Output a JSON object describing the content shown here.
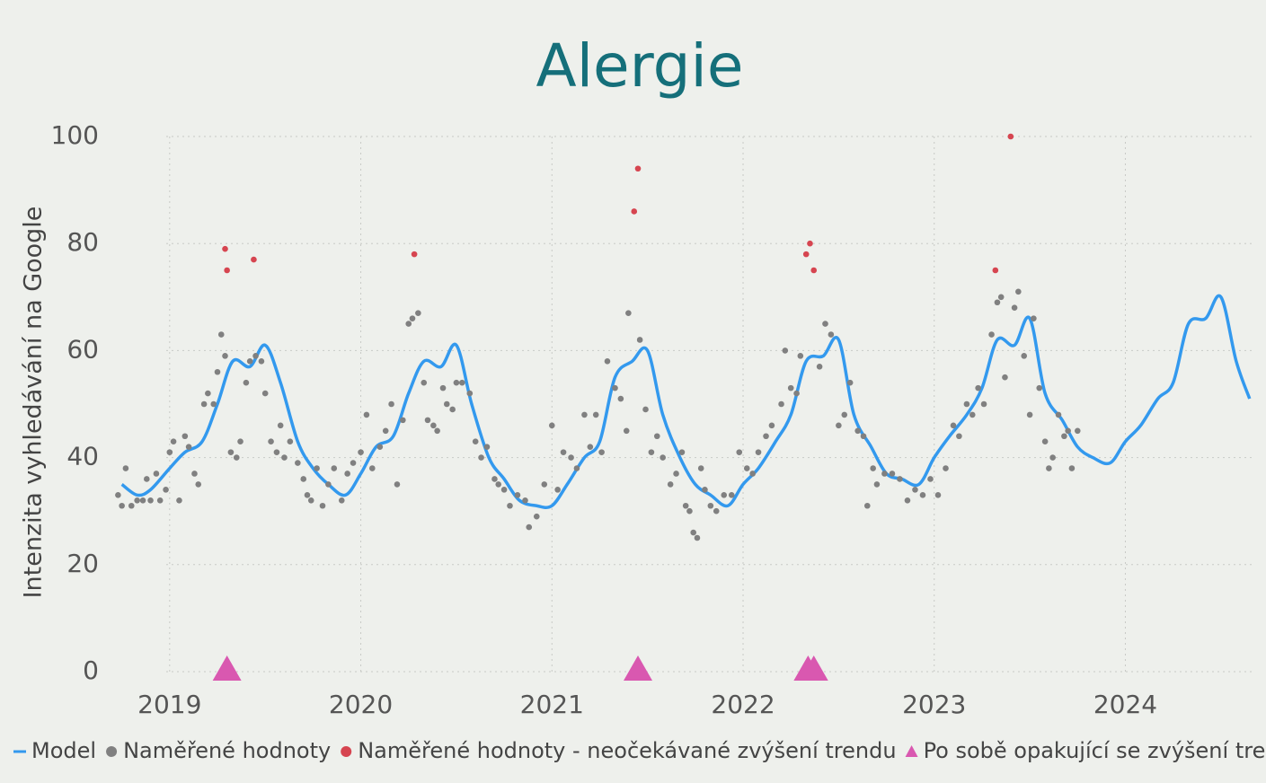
{
  "chart_data": {
    "type": "line-scatter",
    "title": "Alergie",
    "y_label": "Intenzita vyhledávání na Google",
    "xlim": [
      2018.7,
      2024.67
    ],
    "xticks": [
      2019,
      2020,
      2021,
      2022,
      2023,
      2024
    ],
    "ylim": [
      0,
      100
    ],
    "yticks": [
      0,
      20,
      40,
      60,
      80,
      100
    ],
    "grid": true,
    "legend": "bottom",
    "series": [
      {
        "name": "Model",
        "color": "#3399ee",
        "marker": "line",
        "x": [
          2018.75,
          2018.83,
          2018.9,
          2019.0,
          2019.08,
          2019.17,
          2019.25,
          2019.33,
          2019.42,
          2019.5,
          2019.58,
          2019.67,
          2019.75,
          2019.83,
          2019.92,
          2020.0,
          2020.08,
          2020.17,
          2020.25,
          2020.33,
          2020.42,
          2020.5,
          2020.58,
          2020.67,
          2020.75,
          2020.83,
          2020.92,
          2021.0,
          2021.08,
          2021.17,
          2021.25,
          2021.33,
          2021.42,
          2021.5,
          2021.58,
          2021.67,
          2021.75,
          2021.83,
          2021.92,
          2022.0,
          2022.08,
          2022.17,
          2022.25,
          2022.33,
          2022.42,
          2022.5,
          2022.58,
          2022.67,
          2022.75,
          2022.83,
          2022.92,
          2023.0,
          2023.08,
          2023.17,
          2023.25,
          2023.33,
          2023.42,
          2023.5,
          2023.58,
          2023.67,
          2023.75,
          2023.83,
          2023.92,
          2024.0,
          2024.08,
          2024.17,
          2024.25,
          2024.33,
          2024.42,
          2024.5,
          2024.58,
          2024.65
        ],
        "values": [
          35,
          33,
          34,
          38,
          41,
          43,
          50,
          58,
          57,
          61,
          54,
          43,
          38,
          35,
          33,
          37,
          42,
          44,
          52,
          58,
          57,
          61,
          50,
          40,
          36,
          32,
          31,
          31,
          35,
          40,
          43,
          55,
          58,
          60,
          48,
          40,
          35,
          33,
          31,
          35,
          38,
          43,
          48,
          58,
          59,
          62,
          48,
          42,
          37,
          36,
          35,
          40,
          44,
          48,
          53,
          62,
          61,
          66,
          52,
          47,
          42,
          40,
          39,
          43,
          46,
          51,
          54,
          65,
          66,
          70,
          58,
          51
        ]
      },
      {
        "name": "Naměřené hodnoty",
        "color": "#808080",
        "marker": "circle",
        "x": [
          2018.73,
          2018.75,
          2018.77,
          2018.8,
          2018.83,
          2018.86,
          2018.88,
          2018.9,
          2018.93,
          2018.95,
          2018.98,
          2019.0,
          2019.02,
          2019.05,
          2019.08,
          2019.1,
          2019.13,
          2019.15,
          2019.18,
          2019.2,
          2019.23,
          2019.25,
          2019.27,
          2019.29,
          2019.32,
          2019.35,
          2019.37,
          2019.4,
          2019.42,
          2019.45,
          2019.48,
          2019.5,
          2019.53,
          2019.56,
          2019.58,
          2019.6,
          2019.63,
          2019.67,
          2019.7,
          2019.72,
          2019.74,
          2019.77,
          2019.8,
          2019.83,
          2019.86,
          2019.9,
          2019.93,
          2019.96,
          2020.0,
          2020.03,
          2020.06,
          2020.1,
          2020.13,
          2020.16,
          2020.19,
          2020.22,
          2020.25,
          2020.27,
          2020.3,
          2020.33,
          2020.35,
          2020.38,
          2020.4,
          2020.43,
          2020.45,
          2020.48,
          2020.5,
          2020.53,
          2020.57,
          2020.6,
          2020.63,
          2020.66,
          2020.7,
          2020.72,
          2020.75,
          2020.78,
          2020.82,
          2020.86,
          2020.88,
          2020.92,
          2020.96,
          2021.0,
          2021.03,
          2021.06,
          2021.1,
          2021.13,
          2021.17,
          2021.2,
          2021.23,
          2021.26,
          2021.29,
          2021.33,
          2021.36,
          2021.39,
          2021.4,
          2021.46,
          2021.49,
          2021.52,
          2021.55,
          2021.58,
          2021.62,
          2021.65,
          2021.68,
          2021.7,
          2021.72,
          2021.74,
          2021.76,
          2021.78,
          2021.8,
          2021.83,
          2021.86,
          2021.9,
          2021.94,
          2021.98,
          2022.02,
          2022.05,
          2022.08,
          2022.12,
          2022.15,
          2022.2,
          2022.22,
          2022.25,
          2022.28,
          2022.3,
          2022.4,
          2022.43,
          2022.46,
          2022.5,
          2022.53,
          2022.56,
          2022.6,
          2022.63,
          2022.65,
          2022.68,
          2022.7,
          2022.74,
          2022.78,
          2022.82,
          2022.86,
          2022.9,
          2022.94,
          2022.98,
          2023.02,
          2023.06,
          2023.1,
          2023.13,
          2023.17,
          2023.2,
          2023.23,
          2023.26,
          2023.3,
          2023.33,
          2023.35,
          2023.37,
          2023.42,
          2023.44,
          2023.47,
          2023.5,
          2023.52,
          2023.55,
          2023.58,
          2023.6,
          2023.62,
          2023.65,
          2023.68,
          2023.7,
          2023.72,
          2023.75
        ],
        "values": [
          33,
          31,
          38,
          31,
          32,
          32,
          36,
          32,
          37,
          32,
          34,
          41,
          43,
          32,
          44,
          42,
          37,
          35,
          50,
          52,
          50,
          56,
          63,
          59,
          41,
          40,
          43,
          54,
          58,
          59,
          58,
          52,
          43,
          41,
          46,
          40,
          43,
          39,
          36,
          33,
          32,
          38,
          31,
          35,
          38,
          32,
          37,
          39,
          41,
          48,
          38,
          42,
          45,
          50,
          35,
          47,
          65,
          66,
          67,
          54,
          47,
          46,
          45,
          53,
          50,
          49,
          54,
          54,
          52,
          43,
          40,
          42,
          36,
          35,
          34,
          31,
          33,
          32,
          27,
          29,
          35,
          46,
          34,
          41,
          40,
          38,
          48,
          42,
          48,
          41,
          58,
          53,
          51,
          45,
          67,
          62,
          49,
          41,
          44,
          40,
          35,
          37,
          41,
          31,
          30,
          26,
          25,
          38,
          34,
          31,
          30,
          33,
          33,
          41,
          38,
          37,
          41,
          44,
          46,
          50,
          60,
          53,
          52,
          59,
          57,
          65,
          63,
          46,
          48,
          54,
          45,
          44,
          31,
          38,
          35,
          37,
          37,
          36,
          32,
          34,
          33,
          36,
          33,
          38,
          46,
          44,
          50,
          48,
          53,
          50,
          63,
          69,
          70,
          55,
          68,
          71,
          59,
          48,
          66,
          53,
          43,
          38,
          40,
          48,
          44,
          45,
          38,
          45
        ]
      },
      {
        "name": "Naměřené hodnoty - neočekávané zvýšení trendu",
        "color": "#d64550",
        "marker": "circle",
        "x": [
          2019.29,
          2019.3,
          2019.44,
          2020.28,
          2021.43,
          2021.45,
          2022.33,
          2022.35,
          2022.37,
          2023.32,
          2023.4
        ],
        "values": [
          79,
          75,
          77,
          78,
          86,
          94,
          78,
          80,
          75,
          75,
          100
        ]
      },
      {
        "name": "Po sobě opakující se zvýšení trendu",
        "color": "#d958b0",
        "marker": "triangle",
        "x": [
          2019.3,
          2021.45,
          2022.34,
          2022.37
        ],
        "values": [
          0,
          0,
          0,
          0
        ]
      }
    ]
  }
}
